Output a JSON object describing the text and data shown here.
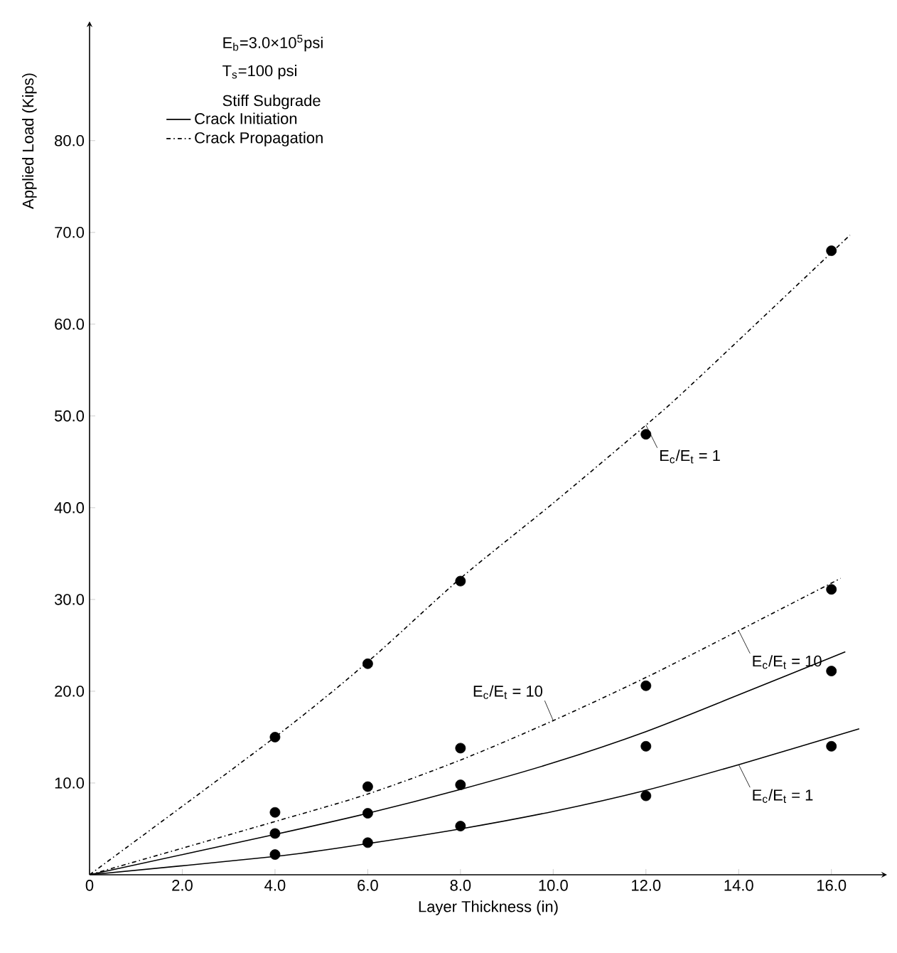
{
  "chart_data": {
    "type": "line",
    "xlabel": "Layer  Thickness (in)",
    "ylabel": "Applied  Load  (Kips)",
    "xlim": [
      0,
      17.2
    ],
    "ylim": [
      0,
      93
    ],
    "xticks": [
      0,
      {
        "value": 2,
        "label": "2.0"
      },
      {
        "value": 4,
        "label": "4.0"
      },
      {
        "value": 6,
        "label": "6.0"
      },
      {
        "value": 8,
        "label": "8.0"
      },
      {
        "value": 10,
        "label": "10.0"
      },
      {
        "value": 12,
        "label": "12.0"
      },
      {
        "value": 14,
        "label": "14.0"
      },
      {
        "value": 16,
        "label": "16.0"
      }
    ],
    "yticks": [
      {
        "value": 10,
        "label": "10.0"
      },
      {
        "value": 20,
        "label": "20.0"
      },
      {
        "value": 30,
        "label": "30.0"
      },
      {
        "value": 40,
        "label": "40.0"
      },
      {
        "value": 50,
        "label": "50.0"
      },
      {
        "value": 60,
        "label": "60.0"
      },
      {
        "value": 70,
        "label": "70.0"
      },
      {
        "value": 80,
        "label": "80.0"
      }
    ],
    "grid": false,
    "legend": "top left",
    "series": [
      {
        "name": "Crack Initiation",
        "line_style": "solid",
        "marker": "none",
        "color": "#000000",
        "x": [
          0,
          4,
          6,
          8,
          10,
          12,
          14,
          16.6
        ],
        "values": [
          0,
          2.0,
          3.4,
          5.0,
          6.9,
          9.2,
          12.0,
          15.9
        ]
      },
      {
        "line_style": "solid",
        "marker": "none",
        "color": "#000000",
        "x": [
          0,
          4,
          6,
          8,
          10,
          12,
          14,
          16.3
        ],
        "values": [
          0,
          4.4,
          6.7,
          9.3,
          12.2,
          15.6,
          19.6,
          24.3
        ]
      },
      {
        "name": "Crack Propagation",
        "line_style": "dashdot",
        "marker": "none",
        "color": "#000000",
        "x": [
          0,
          4,
          6,
          8,
          10,
          12,
          14,
          16.2
        ],
        "values": [
          0,
          5.8,
          8.8,
          12.5,
          16.8,
          21.5,
          26.6,
          32.3
        ]
      },
      {
        "line_style": "dashdot",
        "marker": "none",
        "color": "#000000",
        "x": [
          0,
          4,
          6,
          8,
          10,
          12,
          13,
          16.4
        ],
        "values": [
          0,
          15.0,
          23.2,
          32.3,
          40.5,
          49.0,
          53.5,
          69.7
        ]
      },
      {
        "type": "scatter",
        "marker": "circle",
        "color": "#000000",
        "x": [
          4,
          6,
          8,
          12,
          16
        ],
        "values": [
          2.2,
          3.5,
          5.3,
          8.6,
          14.0
        ]
      },
      {
        "type": "scatter",
        "marker": "circle",
        "color": "#000000",
        "x": [
          4,
          6,
          8,
          12,
          16
        ],
        "values": [
          4.5,
          6.7,
          9.8,
          14.0,
          22.2
        ]
      },
      {
        "type": "scatter",
        "marker": "circle",
        "color": "#000000",
        "x": [
          4,
          6,
          8,
          12,
          16
        ],
        "values": [
          6.8,
          9.6,
          13.8,
          20.6,
          31.1
        ]
      },
      {
        "type": "scatter",
        "marker": "circle",
        "color": "#000000",
        "x": [
          4,
          6,
          8,
          12,
          16
        ],
        "values": [
          15.0,
          23.0,
          32.0,
          48.0,
          68.0
        ]
      }
    ],
    "annotations": [
      "E$_{b}$=3.0×10$^{5}$psi",
      "T$_{s}$=100 psi",
      "Stiff  Subgrade",
      {
        "text": "E$_{c}$/E$_{t}$ = 1",
        "x": 12,
        "y": 49.0
      },
      {
        "text": "E$_{c}$/E$_{t}$ = 10",
        "x": 14,
        "y": 26.6
      },
      {
        "text": "E$_{c}$/E$_{t}$ = 10",
        "x": 10,
        "y": 16.8
      },
      {
        "text": "E$_{c}$/E$_{t}$ = 1",
        "x": 14,
        "y": 12.0
      }
    ]
  }
}
